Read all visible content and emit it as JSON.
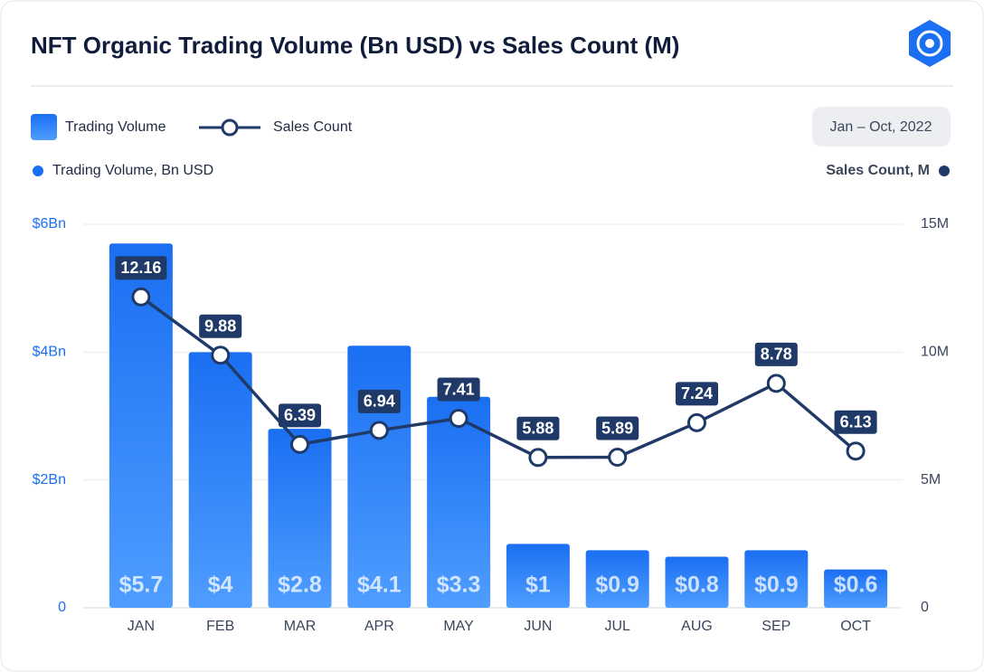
{
  "chart_data": {
    "type": "bar",
    "title": "NFT Organic Trading Volume (Bn USD) vs Sales Count (M)",
    "subtitle": "Jan – Oct, 2022",
    "y_label": "Trading Volume, Bn USD",
    "y2_label": "Sales Count, M",
    "categories": [
      "JAN",
      "FEB",
      "MAR",
      "APR",
      "MAY",
      "JUN",
      "JUL",
      "AUG",
      "SEP",
      "OCT"
    ],
    "series": [
      {
        "name": "Trading Volume",
        "type": "bar",
        "color": "#1a6ff2",
        "values": [
          5.7,
          4,
          2.8,
          4.1,
          3.3,
          1,
          0.9,
          0.8,
          0.9,
          0.6
        ],
        "value_labels": [
          "$5.7",
          "$4",
          "$2.8",
          "$4.1",
          "$3.3",
          "$1",
          "$0.9",
          "$0.8",
          "$0.9",
          "$0.6"
        ]
      },
      {
        "name": "Sales Count",
        "type": "line",
        "color": "#1f3a68",
        "axis": "y2",
        "values": [
          12.16,
          9.88,
          6.39,
          6.94,
          7.41,
          5.88,
          5.89,
          7.24,
          8.78,
          6.13
        ]
      }
    ],
    "ylim": [
      0,
      6
    ],
    "yticks": [
      0,
      {
        "value": 2,
        "label": "$2Bn"
      },
      {
        "value": 4,
        "label": "$4Bn"
      },
      {
        "value": 6,
        "label": "$6Bn"
      }
    ],
    "y2lim": [
      0,
      15
    ],
    "y2ticks": [
      0,
      {
        "value": 5,
        "label": "5M"
      },
      {
        "value": 10,
        "label": "10M"
      },
      {
        "value": 15,
        "label": "15M"
      }
    ],
    "grid": true
  }
}
